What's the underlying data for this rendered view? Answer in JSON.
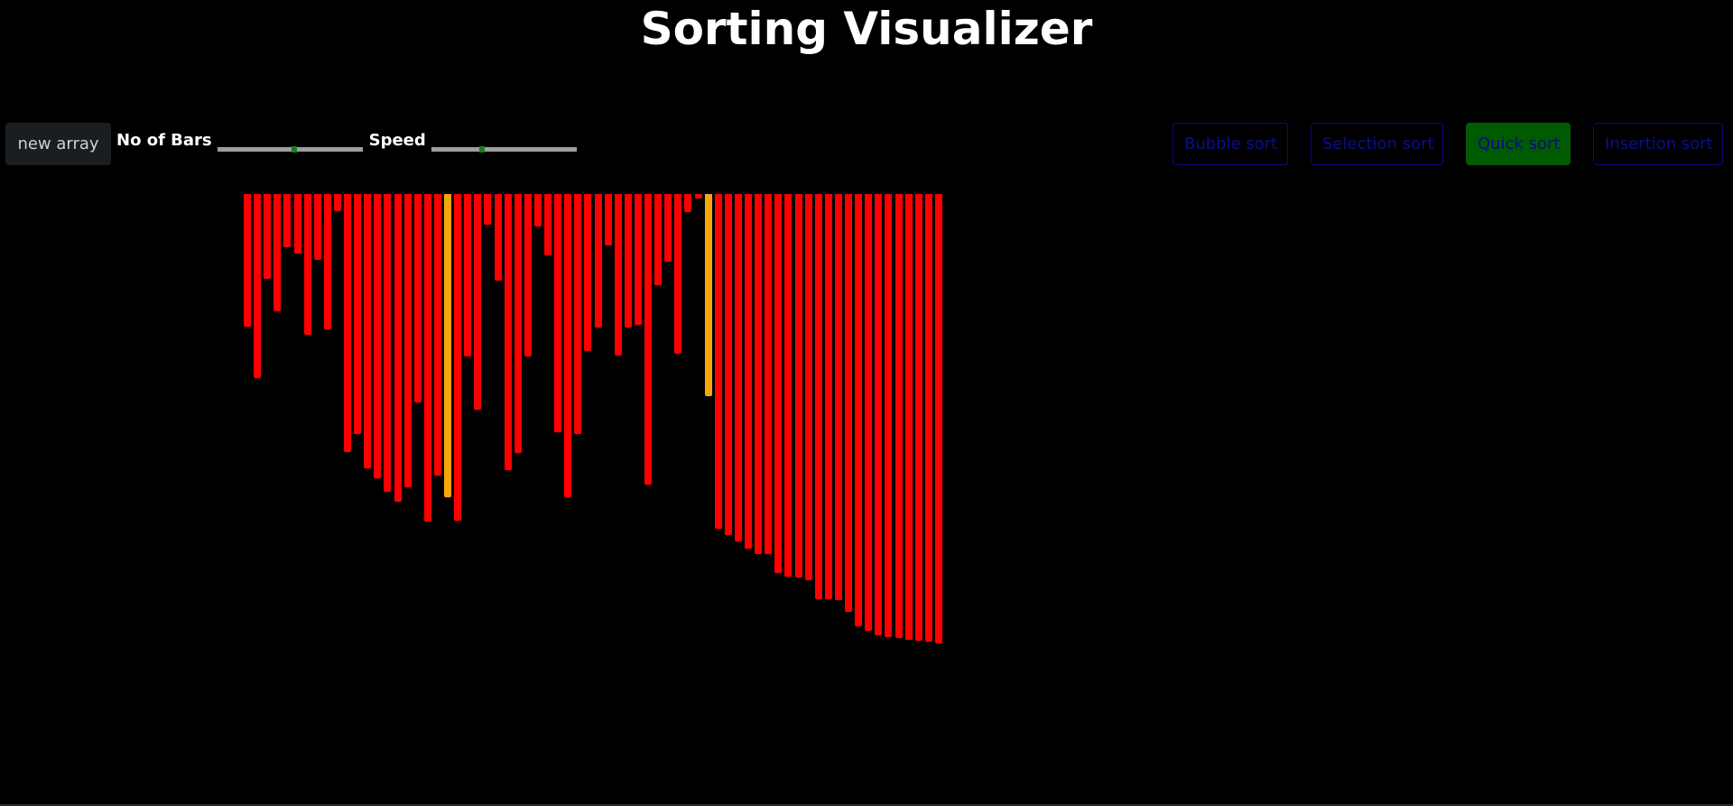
{
  "title": "Sorting Visualizer",
  "controls": {
    "new_array_label": "new array",
    "bars_label": "No of Bars",
    "speed_label": "Speed",
    "bars_slider_fraction": 0.53,
    "speed_slider_fraction": 0.35
  },
  "algorithms": [
    {
      "label": "Bubble sort",
      "active": false
    },
    {
      "label": "Selection sort",
      "active": false
    },
    {
      "label": "Quick sort",
      "active": true
    },
    {
      "label": "Insertion sort",
      "active": false
    }
  ],
  "colors": {
    "bar": "#ff0000",
    "compare": "#f5a60b",
    "active_button": "#005a00"
  },
  "array": [
    147,
    204,
    94,
    130,
    59,
    66,
    156,
    73,
    150,
    19,
    286,
    266,
    304,
    315,
    330,
    341,
    325,
    231,
    363,
    312,
    336,
    362,
    180,
    239,
    34,
    96,
    306,
    287,
    180,
    36,
    68,
    264,
    336,
    266,
    174,
    148,
    57,
    179,
    148,
    145,
    322,
    101,
    75,
    177,
    20,
    5,
    224,
    371,
    378,
    385,
    393,
    399,
    399,
    420,
    424,
    425,
    428,
    449,
    449,
    450,
    463,
    479,
    484,
    489,
    491,
    492,
    494,
    495,
    496,
    498
  ],
  "compare_indices": [
    20,
    46
  ]
}
